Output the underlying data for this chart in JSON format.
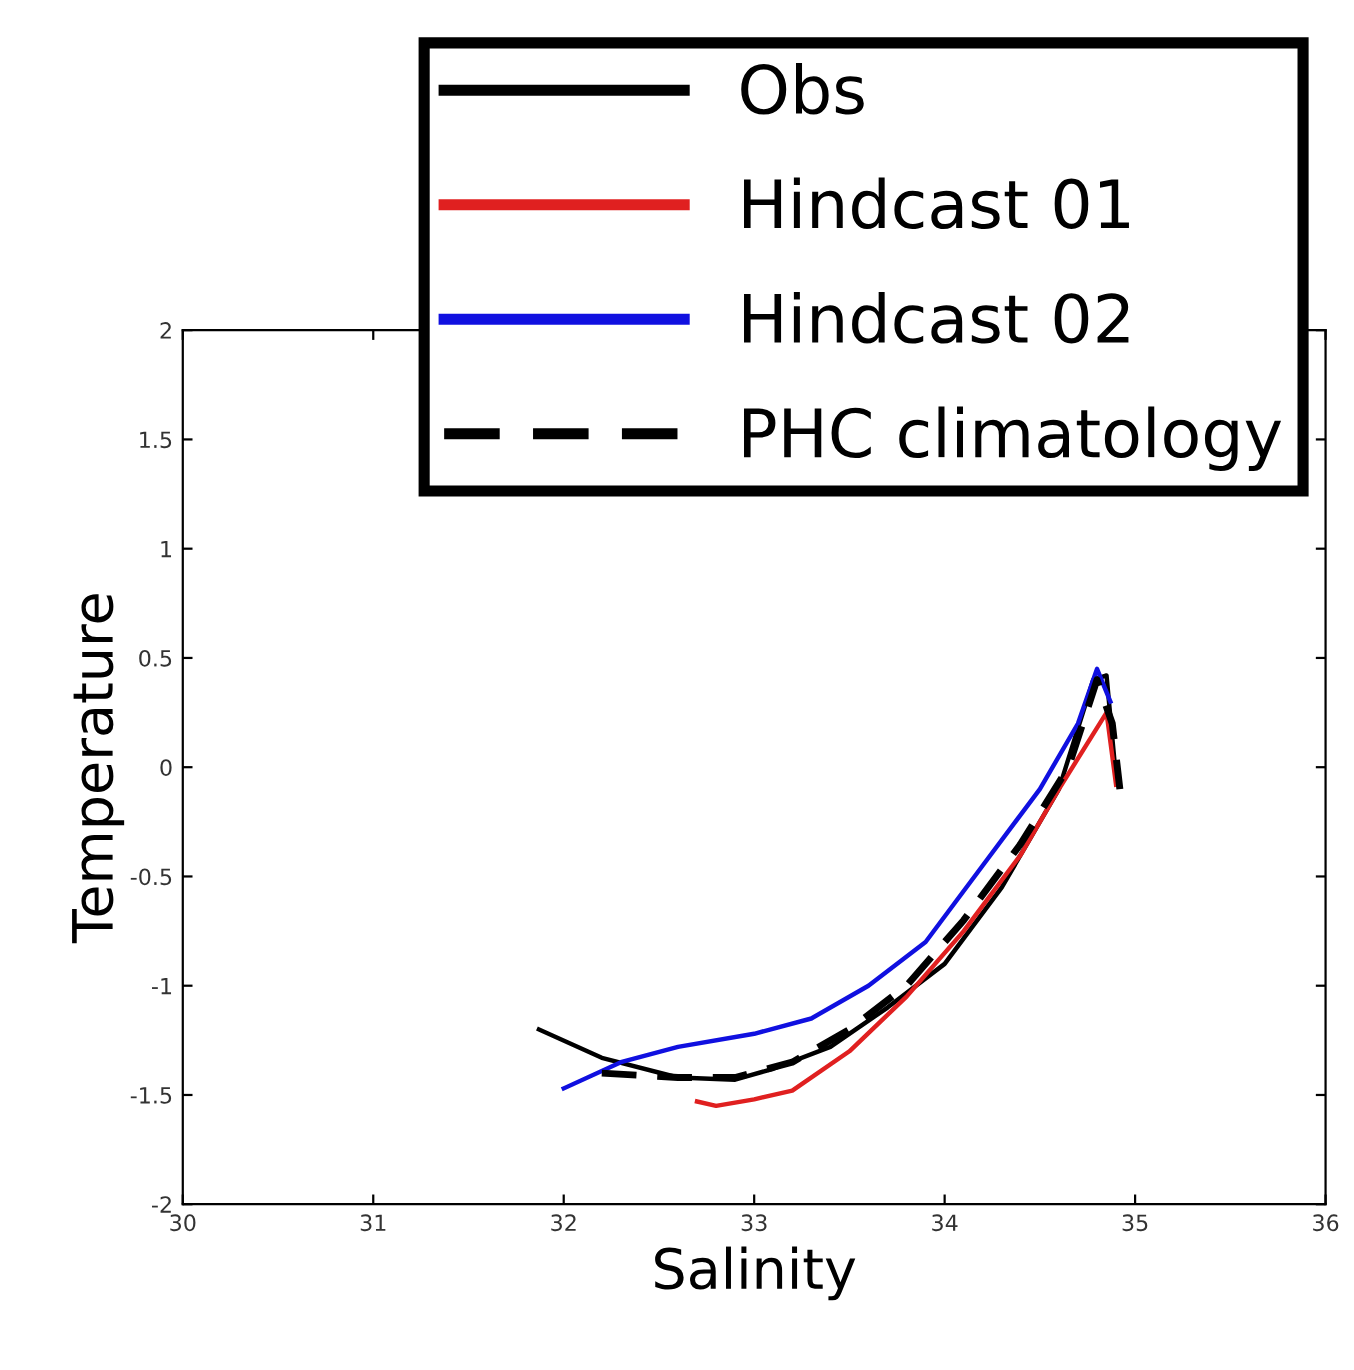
{
  "chart_data": {
    "type": "line",
    "xlabel": "Salinity",
    "ylabel": "Temperature",
    "xlim": [
      30,
      36
    ],
    "ylim": [
      -2,
      2
    ],
    "xticks": [
      30,
      31,
      32,
      33,
      34,
      35,
      36
    ],
    "yticks": [
      -2,
      -1.5,
      -1,
      -0.5,
      0,
      0.5,
      1,
      1.5,
      2
    ],
    "grid": false,
    "legend": "top",
    "series": [
      {
        "name": "Obs",
        "color": "#000000",
        "line_style": "solid",
        "x": [
          31.87,
          32.2,
          32.6,
          32.9,
          33.1,
          33.4,
          33.7,
          34.0,
          34.3,
          34.6,
          34.78,
          34.85,
          34.9
        ],
        "values": [
          -1.2,
          -1.33,
          -1.42,
          -1.43,
          -1.38,
          -1.28,
          -1.1,
          -0.9,
          -0.55,
          -0.1,
          0.4,
          0.42,
          -0.05
        ]
      },
      {
        "name": "Hindcast 01",
        "color": "#e02020",
        "line_style": "solid",
        "x": [
          32.7,
          32.8,
          33.0,
          33.2,
          33.5,
          33.8,
          34.1,
          34.4,
          34.6,
          34.85,
          34.9
        ],
        "values": [
          -1.53,
          -1.55,
          -1.52,
          -1.48,
          -1.3,
          -1.05,
          -0.75,
          -0.4,
          -0.1,
          0.25,
          -0.08
        ]
      },
      {
        "name": "Hindcast 02",
        "color": "#1010e0",
        "line_style": "solid",
        "x": [
          32.0,
          32.3,
          32.6,
          33.0,
          33.3,
          33.6,
          33.9,
          34.2,
          34.5,
          34.7,
          34.8,
          34.87
        ],
        "values": [
          -1.47,
          -1.35,
          -1.28,
          -1.22,
          -1.15,
          -1.0,
          -0.8,
          -0.45,
          -0.1,
          0.2,
          0.45,
          0.3
        ]
      },
      {
        "name": "PHC climatology",
        "color": "#000000",
        "line_style": "dashed",
        "x": [
          32.2,
          32.6,
          32.9,
          33.2,
          33.5,
          33.8,
          34.1,
          34.4,
          34.65,
          34.8,
          34.88,
          34.92
        ],
        "values": [
          -1.4,
          -1.42,
          -1.42,
          -1.35,
          -1.2,
          -1.0,
          -0.7,
          -0.35,
          0.0,
          0.4,
          0.2,
          -0.1
        ]
      }
    ]
  }
}
